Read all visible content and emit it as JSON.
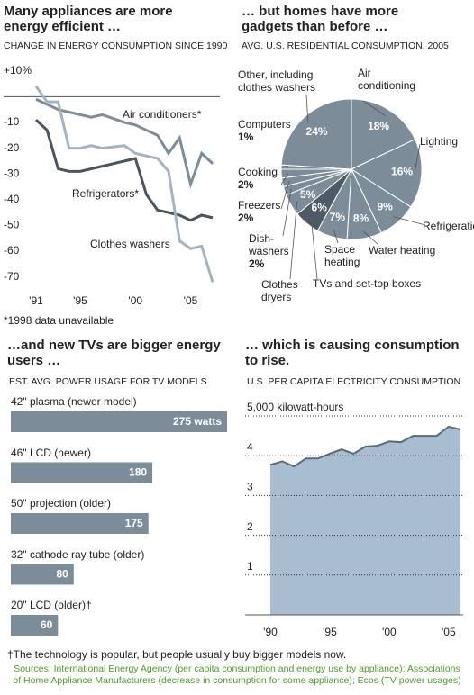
{
  "chart_data": [
    {
      "type": "line",
      "title": "Many appliances are more energy efficient …",
      "subtitle": "CHANGE IN ENERGY CONSUMPTION SINCE 1990",
      "x": [
        1991,
        1992,
        1993,
        1994,
        1995,
        1996,
        1997,
        1999,
        2000,
        2001,
        2002,
        2003,
        2004,
        2005,
        2006,
        2007
      ],
      "series": [
        {
          "name": "Air conditioners*",
          "color": "#7d8c99",
          "values": [
            -1,
            -3,
            -5,
            -6,
            -7,
            -8,
            -7,
            -10,
            -11,
            -13,
            -15,
            -22,
            -16,
            -34,
            -22,
            -26
          ]
        },
        {
          "name": "Refrigerators*",
          "color": "#4a5560",
          "values": [
            -9,
            -13,
            -28,
            -29,
            -29,
            -28,
            -27,
            -25,
            -24,
            -38,
            -44,
            -45,
            -46,
            -48,
            -46,
            -47
          ]
        },
        {
          "name": "Clothes washers",
          "color": "#a3b3c2",
          "values": [
            4,
            -2,
            -2,
            -20,
            -20,
            -19,
            -20,
            -19,
            -22,
            -23,
            -24,
            -29,
            -56,
            -59,
            -58,
            -72
          ]
        }
      ],
      "xlim": [
        1991,
        2007
      ],
      "xticks": [
        {
          "value": 1991,
          "label": "'91"
        },
        {
          "value": 1995,
          "label": "'95"
        },
        {
          "value": 2000,
          "label": "'00"
        },
        {
          "value": 2005,
          "label": "'05"
        }
      ],
      "ylim": [
        -75,
        12
      ],
      "yticks": [
        {
          "value": 10,
          "label": "+10%"
        },
        -10,
        -20,
        -30,
        -40,
        -50,
        -60,
        -70
      ],
      "zero_line": true,
      "note": "*1998 data unavailable"
    },
    {
      "type": "pie",
      "title": "… but homes have more gadgets than before …",
      "subtitle": "AVG. U.S. RESIDENTIAL CONSUMPTION, 2005",
      "categories": [
        "Air conditioning",
        "Lighting",
        "Refrigeration",
        "Water heating",
        "Space heating",
        "TVs and set-top boxes",
        "Clothes dryers",
        "Dish-washers",
        "Freezers",
        "Cooking",
        "Computers",
        "Other, including clothes washers"
      ],
      "values": [
        18,
        16,
        9,
        8,
        7,
        6,
        5,
        2,
        2,
        2,
        1,
        24
      ],
      "value_labels": [
        "18%",
        "16%",
        "9%",
        "8%",
        "7%",
        "6%",
        "5%",
        "2%",
        "2%",
        "2%",
        "1%",
        "24%"
      ],
      "colors": [
        "#7d8c99",
        "#7d8c99",
        "#7d8c99",
        "#7d8c99",
        "#7d8c99",
        "#4e5b67",
        "#7d8c99",
        "#7d8c99",
        "#7d8c99",
        "#7d8c99",
        "#7d8c99",
        "#7d8c99"
      ]
    },
    {
      "type": "hbar",
      "title": "…and new TVs are bigger energy users …",
      "subtitle": "EST. AVG. POWER USAGE FOR TV MODELS",
      "categories": [
        "42\" plasma (newer model)",
        "46\" LCD (newer)",
        "50\" projection (older)",
        "32\" cathode ray tube (older)",
        "20\" LCD (older)†"
      ],
      "values": [
        275,
        180,
        175,
        80,
        60
      ],
      "value_labels": [
        "275 watts",
        "180",
        "175",
        "80",
        "60"
      ],
      "color": "#7d8c99",
      "xlim": [
        0,
        275
      ]
    },
    {
      "type": "area",
      "title": "… which is causing consumption to rise.",
      "subtitle": "U.S. PER CAPITA ELECTRICITY CONSUMPTION",
      "x": [
        1990,
        1991,
        1992,
        1993,
        1994,
        1995,
        1996,
        1997,
        1998,
        1999,
        2000,
        2001,
        2002,
        2003,
        2004,
        2005,
        2006
      ],
      "values": [
        3770,
        3860,
        3730,
        3930,
        3930,
        4050,
        4160,
        4050,
        4230,
        4250,
        4360,
        4340,
        4500,
        4500,
        4500,
        4730,
        4660
      ],
      "color": "#a9bdd0",
      "line_color": "#5a6b7c",
      "xlim": [
        1990,
        2006
      ],
      "xticks": [
        {
          "value": 1990,
          "label": "'90"
        },
        {
          "value": 1995,
          "label": "'95"
        },
        {
          "value": 2000,
          "label": "'00"
        },
        {
          "value": 2005,
          "label": "'05"
        }
      ],
      "ylim": [
        0,
        5000
      ],
      "yticks": [
        {
          "value": 5000,
          "label": "5,000 kilowatt-hours"
        },
        {
          "value": 4000,
          "label": "4"
        },
        {
          "value": 3000,
          "label": "3"
        },
        {
          "value": 2000,
          "label": "2"
        },
        {
          "value": 1000,
          "label": "1"
        }
      ],
      "grid": true
    }
  ],
  "footnote": "†The technology is popular, but people usually buy bigger models now.",
  "sources": "Sources: International Energy Agency (per capita consumption and energy use by appliance); Associations of Home Appliance Manufacturers (decrease in consumption for some appliance); Ecos (TV power usages)"
}
